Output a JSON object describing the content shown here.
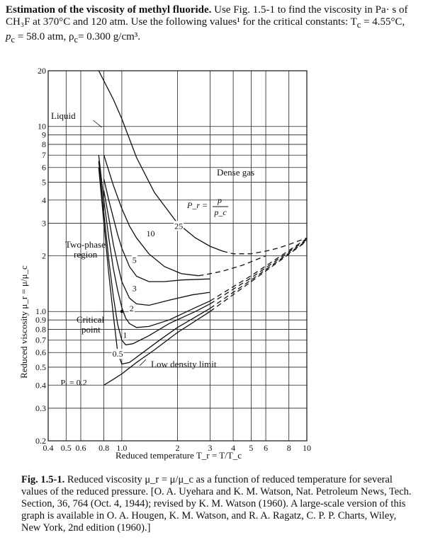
{
  "problem": {
    "title": "Estimation of the viscosity of methyl fluoride.",
    "lines": [
      "Use Fig. 1.5-1 to find the viscosity in Pa· s of",
      "CH₃F at 370°C and 120 atm. Use the following values¹ for the critical constants: T",
      "c",
      " = 4.55°C,",
      "p",
      "c",
      " = 58.0 atm, ρ",
      "c",
      "= 0.300 g/cm³."
    ]
  },
  "chart_data": {
    "type": "line",
    "xscale": "log",
    "yscale": "log",
    "xlim": [
      0.4,
      10
    ],
    "ylim": [
      0.2,
      20
    ],
    "xlabel": "Reduced temperature T_r = T/T_c",
    "ylabel": "Reduced viscosity μ_r = μ/μ_c",
    "xticks": [
      "0.4",
      "0.5",
      "0.6",
      "0.8",
      "1.0",
      "2",
      "3",
      "4",
      "5",
      "6",
      "8",
      "10"
    ],
    "yticks": [
      "0.2",
      "0.3",
      "0.4",
      "0.5",
      "0.6",
      "0.7",
      "0.8",
      "0.9",
      "1.0",
      "2",
      "3",
      "4",
      "5",
      "6",
      "7",
      "8",
      "9",
      "10",
      "20"
    ],
    "grid": true,
    "annotations": [
      "Liquid",
      "Dense gas",
      "Two-phase region",
      "Critical point",
      "Low density limit"
    ],
    "pr_formula": {
      "lhs": "P_r = ",
      "num": "p",
      "den": "p_c"
    },
    "series": [
      {
        "name": "0.2",
        "x": [
          0.8,
          0.9,
          1.0,
          1.2,
          1.5,
          2.0,
          3.0,
          5.0,
          10.0
        ],
        "y": [
          0.4,
          0.43,
          0.46,
          0.53,
          0.62,
          0.77,
          1.0,
          1.45,
          2.4
        ],
        "dashed_after": 4.5
      },
      {
        "name": "0.5",
        "x": [
          0.75,
          0.8,
          0.85,
          0.9,
          0.95,
          1.0,
          1.1,
          1.3,
          1.6,
          2.0,
          3.0,
          5.0,
          10.0
        ],
        "y": [
          6.0,
          3.0,
          1.6,
          0.95,
          0.6,
          0.52,
          0.53,
          0.6,
          0.7,
          0.82,
          1.04,
          1.48,
          2.42
        ],
        "dashed_after": 4.5
      },
      {
        "name": "1",
        "x": [
          0.75,
          0.8,
          0.85,
          0.9,
          0.95,
          1.0,
          1.05,
          1.15,
          1.4,
          1.8,
          2.5,
          3.0,
          5.0,
          10.0
        ],
        "y": [
          6.5,
          3.4,
          1.9,
          1.2,
          0.85,
          0.7,
          0.66,
          0.67,
          0.74,
          0.86,
          1.0,
          1.1,
          1.52,
          2.45
        ],
        "dashed_after": 4.5
      },
      {
        "name": "2",
        "x": [
          0.75,
          0.8,
          0.85,
          0.9,
          0.95,
          1.0,
          1.05,
          1.1,
          1.2,
          1.4,
          1.8,
          2.5,
          3.0,
          5.0,
          10.0
        ],
        "y": [
          7.0,
          4.0,
          2.5,
          1.7,
          1.3,
          1.05,
          0.92,
          0.86,
          0.82,
          0.83,
          0.9,
          1.05,
          1.14,
          1.56,
          2.48
        ],
        "dashed_after": 3.6
      },
      {
        "name": "3",
        "x": [
          0.8,
          0.85,
          0.9,
          0.95,
          1.0,
          1.1,
          1.2,
          1.4,
          1.8,
          2.4,
          3.0
        ],
        "y": [
          4.5,
          3.2,
          2.3,
          1.8,
          1.45,
          1.18,
          1.1,
          1.08,
          1.15,
          1.23,
          1.27
        ],
        "dashed_after": 99
      },
      {
        "name": "5",
        "x": [
          0.8,
          0.85,
          0.9,
          0.95,
          1.0,
          1.1,
          1.2,
          1.4,
          1.7,
          2.1,
          3.0
        ],
        "y": [
          5.2,
          4.0,
          3.2,
          2.6,
          2.2,
          1.75,
          1.55,
          1.45,
          1.45,
          1.48,
          1.5
        ],
        "dashed_after": 99
      },
      {
        "name": "10",
        "x": [
          0.8,
          0.9,
          1.0,
          1.1,
          1.2,
          1.4,
          1.7,
          2.1,
          2.6,
          3.0,
          3.5,
          4.5,
          6.0
        ],
        "y": [
          7.0,
          4.8,
          3.6,
          2.9,
          2.5,
          2.05,
          1.75,
          1.6,
          1.56,
          1.6,
          1.65,
          1.78,
          2.0
        ],
        "dashed_after": 2.9
      },
      {
        "name": "25",
        "x": [
          0.75,
          0.9,
          1.0,
          1.2,
          1.5,
          2.0,
          2.5,
          3.0,
          3.5,
          4.0,
          5.0,
          6.0,
          7.0,
          8.0,
          10.0
        ],
        "y": [
          20.0,
          14.0,
          11.0,
          6.8,
          4.4,
          3.0,
          2.5,
          2.25,
          2.12,
          2.05,
          2.05,
          2.12,
          2.2,
          2.3,
          2.5
        ],
        "dashed_after": 3.8
      }
    ]
  },
  "caption": {
    "label": "Fig. 1.5-1.",
    "lines": [
      "Reduced viscosity μ_r = μ/μ_c as a function of reduced temperature for several",
      "values of the reduced pressure. [O. A. Uyehara and K. M. Watson, Nat. Petroleum News, Tech.",
      "Section, 36, 764 (Oct. 4, 1944); revised by K. M. Watson (1960). A large-scale version of this",
      "graph is available in O. A. Hougen, K. M. Watson, and R. A. Ragatz, C. P. P. Charts, Wiley,",
      "New York, 2nd edition (1960).]"
    ]
  }
}
